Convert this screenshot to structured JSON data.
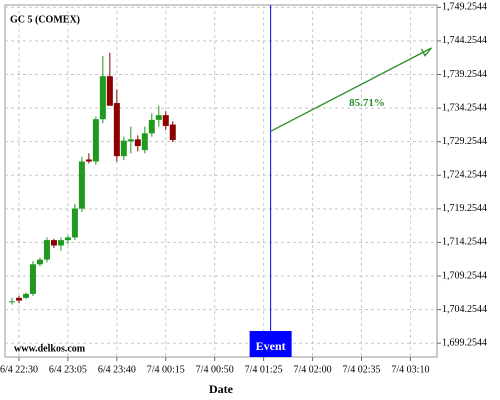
{
  "chart_data": {
    "type": "candlestick",
    "title": "GC 5 (COMEX)",
    "x_label": "Date",
    "watermark": "www.delkos.com",
    "up_color": "#1f9a1f",
    "down_color": "#8b0000",
    "grid": true,
    "xlim": [
      "6/4 22:20",
      "7/4 03:29"
    ],
    "xticks": [
      "6/4 22:30",
      "6/4 23:05",
      "6/4 23:40",
      "7/4 00:15",
      "7/4 00:50",
      "7/4 01:25",
      "7/4 02:00",
      "7/4 02:35",
      "7/4 03:10"
    ],
    "ylim": [
      1697.2,
      1749.6
    ],
    "yticks": [
      {
        "value": 1749.2544,
        "label": "1,749.2544"
      },
      {
        "value": 1744.2544,
        "label": "1,744.2544"
      },
      {
        "value": 1739.2544,
        "label": "1,739.2544"
      },
      {
        "value": 1734.2544,
        "label": "1,734.2544"
      },
      {
        "value": 1729.2544,
        "label": "1,729.2544"
      },
      {
        "value": 1724.2544,
        "label": "1,724.2544"
      },
      {
        "value": 1719.2544,
        "label": "1,719.2544"
      },
      {
        "value": 1714.2544,
        "label": "1,714.2544"
      },
      {
        "value": 1709.2544,
        "label": "1,709.2544"
      },
      {
        "value": 1704.2544,
        "label": "1,704.2544"
      },
      {
        "value": 1699.2544,
        "label": "1,699.2544"
      }
    ],
    "candles": {
      "x": [
        "6/4 22:25",
        "6/4 22:30",
        "6/4 22:35",
        "6/4 22:40",
        "6/4 22:45",
        "6/4 22:50",
        "6/4 22:55",
        "6/4 23:00",
        "6/4 23:05",
        "6/4 23:10",
        "6/4 23:15",
        "6/4 23:20",
        "6/4 23:25",
        "6/4 23:30",
        "6/4 23:35",
        "6/4 23:40",
        "6/4 23:45",
        "6/4 23:50",
        "6/4 23:55",
        "7/4 00:00",
        "7/4 00:05",
        "7/4 00:10",
        "7/4 00:15",
        "7/4 00:20"
      ],
      "open": [
        1705.5,
        1706.0,
        1706.0,
        1706.6,
        1711.0,
        1711.7,
        1714.6,
        1713.8,
        1714.6,
        1715.0,
        1719.3,
        1726.6,
        1726.3,
        1732.6,
        1739.0,
        1735.0,
        1727.1,
        1729.3,
        1729.6,
        1728.0,
        1730.5,
        1732.5,
        1733.2,
        1731.8
      ],
      "high": [
        1706.0,
        1706.3,
        1706.8,
        1711.5,
        1712.0,
        1715.0,
        1714.8,
        1715.0,
        1715.3,
        1720.0,
        1727.0,
        1727.5,
        1733.0,
        1742.0,
        1742.5,
        1737.0,
        1730.0,
        1731.5,
        1730.2,
        1731.5,
        1733.5,
        1734.6,
        1733.8,
        1732.3
      ],
      "low": [
        1705.0,
        1705.2,
        1705.8,
        1706.3,
        1710.7,
        1711.3,
        1713.4,
        1713.0,
        1714.0,
        1714.6,
        1718.8,
        1726.0,
        1725.8,
        1732.0,
        1735.0,
        1726.3,
        1726.5,
        1727.5,
        1727.8,
        1727.5,
        1730.0,
        1731.5,
        1731.0,
        1729.2
      ],
      "close": [
        1705.5,
        1705.6,
        1706.6,
        1711.0,
        1711.7,
        1714.6,
        1713.8,
        1714.6,
        1715.0,
        1719.3,
        1726.3,
        1726.3,
        1732.6,
        1739.0,
        1734.6,
        1727.1,
        1729.4,
        1729.6,
        1728.6,
        1730.5,
        1732.5,
        1733.2,
        1731.6,
        1729.5
      ]
    },
    "event": {
      "x": "7/4 01:30",
      "label": "Event",
      "color": "#0000ff"
    },
    "forecast": {
      "x": [
        "7/4 01:30",
        "7/4 03:25"
      ],
      "values": [
        1730.8,
        1743.2
      ],
      "label": "85.71%",
      "color": "#2a8f2a"
    }
  }
}
